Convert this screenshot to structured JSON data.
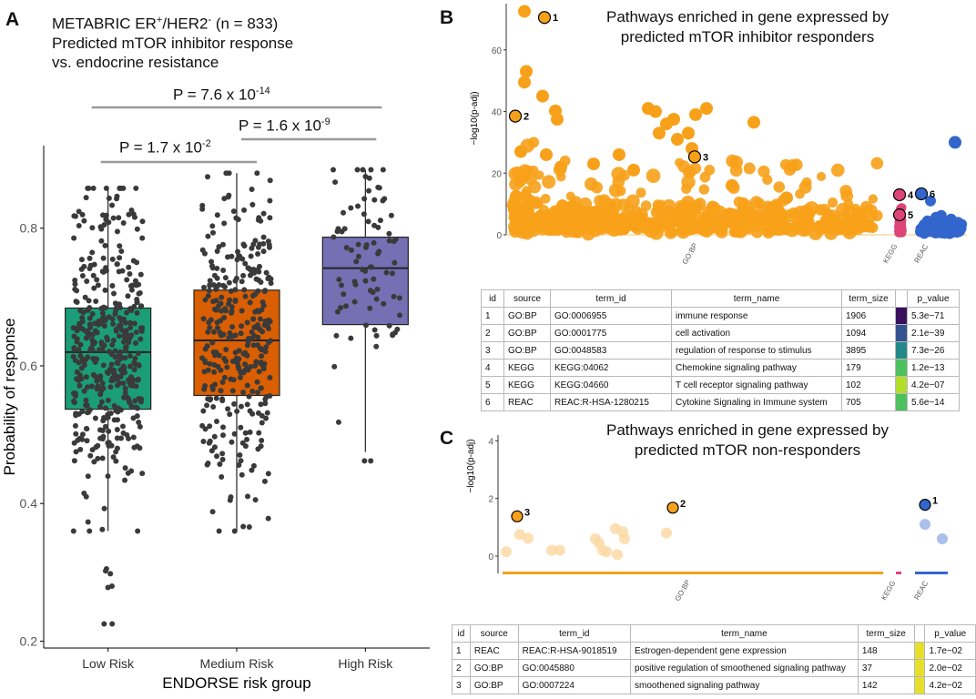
{
  "panels": {
    "a": "A",
    "b": "B",
    "c": "C"
  },
  "panelA": {
    "title_line1_pre": "METABRIC ER",
    "title_line1_sup1": "+",
    "title_line1_mid": "/HER2",
    "title_line1_sup2": "-",
    "title_line1_post": " (n = 833)",
    "title_line2": "Predicted mTOR inhibitor response",
    "title_line3": "vs. endocrine resistance",
    "pvals": [
      {
        "base": "P = 7.6 x 10",
        "exp": "-14"
      },
      {
        "base": "P = 1.6 x 10",
        "exp": "-9"
      },
      {
        "base": "P = 1.7 x 10",
        "exp": "-2"
      }
    ]
  },
  "panelB": {
    "title_line1": "Pathways enriched in gene expressed by",
    "title_line2": "predicted mTOR inhibitor responders",
    "labels": [
      "1",
      "2",
      "3",
      "4",
      "5",
      "6"
    ],
    "table": {
      "headers": [
        "id",
        "source",
        "term_id",
        "term_name",
        "term_size",
        "p_value"
      ],
      "rows": [
        {
          "id": "1",
          "source": "GO:BP",
          "term_id": "GO:0006955",
          "term_name": "immune response",
          "term_size": "1906",
          "p_value": "5.3e−71",
          "color": "#3a0f5c"
        },
        {
          "id": "2",
          "source": "GO:BP",
          "term_id": "GO:0001775",
          "term_name": "cell activation",
          "term_size": "1094",
          "p_value": "2.1e−39",
          "color": "#34528f"
        },
        {
          "id": "3",
          "source": "GO:BP",
          "term_id": "GO:0048583",
          "term_name": "regulation of response to stimulus",
          "term_size": "3895",
          "p_value": "7.3e−26",
          "color": "#24888a"
        },
        {
          "id": "4",
          "source": "KEGG",
          "term_id": "KEGG:04062",
          "term_name": "Chemokine signaling pathway",
          "term_size": "179",
          "p_value": "1.2e−13",
          "color": "#4dc060"
        },
        {
          "id": "5",
          "source": "KEGG",
          "term_id": "KEGG:04660",
          "term_name": "T cell receptor signaling pathway",
          "term_size": "102",
          "p_value": "4.2e−07",
          "color": "#b4dc2a"
        },
        {
          "id": "6",
          "source": "REAC",
          "term_id": "REAC:R-HSA-1280215",
          "term_name": "Cytokine Signaling in Immune system",
          "term_size": "705",
          "p_value": "5.6e−14",
          "color": "#4dc060"
        }
      ]
    }
  },
  "panelC": {
    "title_line1": "Pathways enriched in gene expressed by",
    "title_line2": "predicted mTOR non-responders",
    "labels": [
      "1",
      "2",
      "3"
    ],
    "table": {
      "headers": [
        "id",
        "source",
        "term_id",
        "term_name",
        "term_size",
        "p_value"
      ],
      "rows": [
        {
          "id": "1",
          "source": "REAC",
          "term_id": "REAC:R-HSA-9018519",
          "term_name": "Estrogen-dependent gene expression",
          "term_size": "148",
          "p_value": "1.7e−02",
          "color": "#e8df2a"
        },
        {
          "id": "2",
          "source": "GO:BP",
          "term_id": "GO:0045880",
          "term_name": "positive regulation of smoothened signaling pathway",
          "term_size": "37",
          "p_value": "2.0e−02",
          "color": "#e8df2a"
        },
        {
          "id": "3",
          "source": "GO:BP",
          "term_id": "GO:0007224",
          "term_name": "smoothened signaling pathway",
          "term_size": "142",
          "p_value": "4.2e−02",
          "color": "#e8df2a"
        }
      ]
    }
  },
  "chart_data": [
    {
      "type": "box",
      "panel": "A",
      "xlabel": "ENDORSE risk group",
      "ylabel": "Probability of response",
      "ylim": [
        0.19,
        0.92
      ],
      "yticks": [
        0.2,
        0.4,
        0.6,
        0.8
      ],
      "ytick_labels": [
        "0.2",
        "0.4",
        "0.6",
        "0.8"
      ],
      "categories": [
        "Low Risk",
        "Medium Risk",
        "High Risk"
      ],
      "colors": [
        "#1b9e77",
        "#d95f02",
        "#7570b3"
      ],
      "boxes": [
        {
          "name": "Low Risk",
          "q1": 0.537,
          "median": 0.62,
          "q3": 0.684,
          "whisker_low": 0.36,
          "whisker_high": 0.858,
          "n_points": 420,
          "outliers": [
            0.225,
            0.225,
            0.278,
            0.28,
            0.298,
            0.302,
            0.305
          ]
        },
        {
          "name": "Medium Risk",
          "q1": 0.557,
          "median": 0.637,
          "q3": 0.71,
          "whisker_low": 0.36,
          "whisker_high": 0.88,
          "n_points": 330,
          "outliers": []
        },
        {
          "name": "High Risk",
          "q1": 0.66,
          "median": 0.742,
          "q3": 0.787,
          "whisker_low": 0.475,
          "whisker_high": 0.885,
          "n_points": 83,
          "outliers": [
            0.462,
            0.462
          ]
        }
      ],
      "comparisons": [
        {
          "groups": [
            "Low Risk",
            "High Risk"
          ],
          "label": "P = 7.6 x 10^-14"
        },
        {
          "groups": [
            "Medium Risk",
            "High Risk"
          ],
          "label": "P = 1.6 x 10^-9"
        },
        {
          "groups": [
            "Low Risk",
            "Medium Risk"
          ],
          "label": "P = 1.7 x 10^-2"
        }
      ]
    },
    {
      "type": "scatter",
      "panel": "B",
      "ylabel": "−log10(p-adj)",
      "ylim": [
        0,
        75
      ],
      "yticks": [
        0,
        20,
        40,
        60
      ],
      "ytick_labels": [
        "0",
        "20",
        "40",
        "60"
      ],
      "sources": [
        {
          "name": "GO:BP",
          "color": "#f7a11a",
          "x_range": [
            0,
            1
          ]
        },
        {
          "name": "KEGG",
          "color": "#dd4477",
          "x_range": [
            1.02,
            1.075
          ]
        },
        {
          "name": "REAC",
          "color": "#3366cc",
          "x_range": [
            1.1,
            1.25
          ]
        }
      ],
      "highlighted": [
        {
          "label": "1",
          "source": "GO:BP",
          "x": 0.095,
          "y": 70.5
        },
        {
          "label": "2",
          "source": "GO:BP",
          "x": 0.02,
          "y": 38.5
        },
        {
          "label": "3",
          "source": "GO:BP",
          "x": 0.478,
          "y": 25.3
        },
        {
          "label": "4",
          "source": "KEGG",
          "x": 1.04,
          "y": 13
        },
        {
          "label": "5",
          "source": "KEGG",
          "x": 1.04,
          "y": 6.5
        },
        {
          "label": "6",
          "source": "REAC",
          "x": 1.133,
          "y": 13.3
        }
      ]
    },
    {
      "type": "scatter",
      "panel": "C",
      "ylabel": "−log10(p-adj)",
      "ylim": [
        -0.6,
        4.2
      ],
      "yticks": [
        0,
        2,
        4
      ],
      "ytick_labels": [
        "0",
        "2",
        "4"
      ],
      "sources": [
        {
          "name": "GO:BP",
          "color": "#f7a11a",
          "x_range": [
            0,
            1
          ]
        },
        {
          "name": "KEGG",
          "color": "#dd4477",
          "x_range": [
            1.02,
            1.05
          ]
        },
        {
          "name": "REAC",
          "color": "#3366cc",
          "x_range": [
            1.08,
            1.2
          ]
        }
      ],
      "highlighted": [
        {
          "label": "1",
          "source": "REAC",
          "x": 1.115,
          "y": 1.78
        },
        {
          "label": "2",
          "source": "GO:BP",
          "x": 0.225,
          "y": 1.68
        },
        {
          "label": "3",
          "source": "GO:BP",
          "x": 0.05,
          "y": 1.38
        }
      ],
      "faded_points": [
        {
          "source": "GO:BP",
          "x": 0.0,
          "y": 0.15
        },
        {
          "source": "GO:BP",
          "x": 0.037,
          "y": 0.75
        },
        {
          "source": "GO:BP",
          "x": 0.06,
          "y": 0.62
        },
        {
          "source": "GO:BP",
          "x": 0.125,
          "y": 0.2
        },
        {
          "source": "GO:BP",
          "x": 0.147,
          "y": 0.2
        },
        {
          "source": "GO:BP",
          "x": 0.245,
          "y": 0.6
        },
        {
          "source": "GO:BP",
          "x": 0.255,
          "y": 0.45
        },
        {
          "source": "GO:BP",
          "x": 0.3,
          "y": 0.95
        },
        {
          "source": "GO:BP",
          "x": 0.32,
          "y": 0.85
        },
        {
          "source": "GO:BP",
          "x": 0.325,
          "y": 0.6
        },
        {
          "source": "GO:BP",
          "x": 0.265,
          "y": 0.2
        },
        {
          "source": "GO:BP",
          "x": 0.275,
          "y": 0.15
        },
        {
          "source": "GO:BP",
          "x": 0.305,
          "y": 0.05
        },
        {
          "source": "GO:BP",
          "x": 0.44,
          "y": 0.8
        },
        {
          "source": "REAC",
          "x": 1.115,
          "y": 1.1
        },
        {
          "source": "REAC",
          "x": 1.17,
          "y": 0.6
        }
      ]
    }
  ]
}
